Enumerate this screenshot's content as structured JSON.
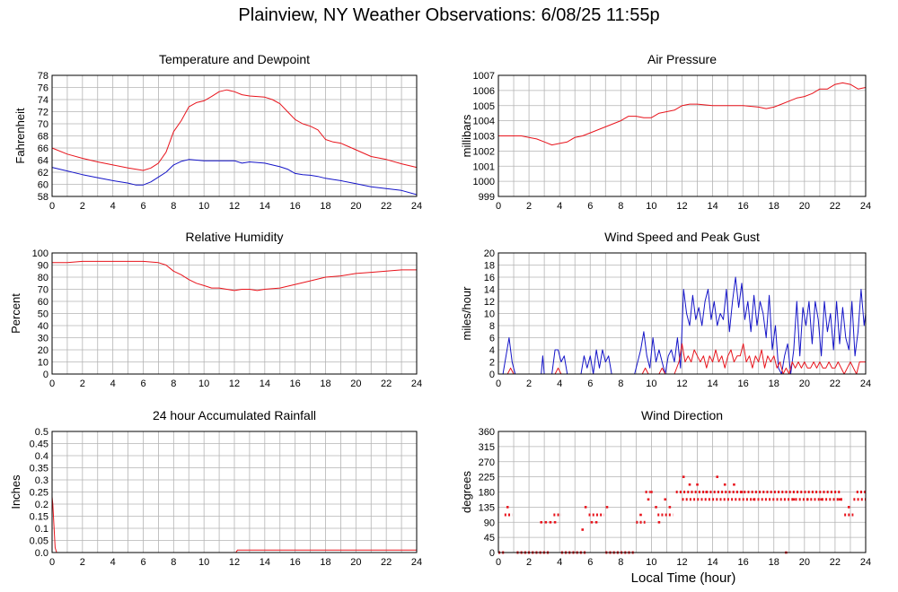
{
  "page_title": "Plainview, NY Weather Observations: 6/08/25 11:55p",
  "shared_xlabel": "Local Time (hour)",
  "colors": {
    "red": "#e8141c",
    "blue": "#1414c8",
    "grid": "#b4b4b4"
  },
  "chart_data": [
    {
      "id": "temp",
      "type": "line",
      "title": "Temperature and Dewpoint",
      "xlabel": "",
      "ylabel": "Fahrenheit",
      "xlim": [
        0,
        24
      ],
      "ylim": [
        58,
        78
      ],
      "xticks": [
        0,
        2,
        4,
        6,
        8,
        10,
        12,
        14,
        16,
        18,
        20,
        22,
        24
      ],
      "yticks": [
        58,
        60,
        62,
        64,
        66,
        68,
        70,
        72,
        74,
        76,
        78
      ],
      "grid": true,
      "series": [
        {
          "color": "#e8141c",
          "x": [
            0,
            1,
            2,
            3,
            4,
            5,
            6,
            6.5,
            7,
            7.5,
            8,
            8.5,
            9,
            9.5,
            10,
            10.5,
            11,
            11.5,
            12,
            12.5,
            13,
            13.5,
            14,
            14.5,
            15,
            15.5,
            16,
            16.5,
            17,
            17.5,
            18,
            18.5,
            19,
            20,
            21,
            22,
            23,
            24
          ],
          "y": [
            66,
            65,
            64.3,
            63.7,
            63.2,
            62.7,
            62.3,
            62.7,
            63.5,
            65.3,
            68.7,
            70.5,
            72.8,
            73.5,
            73.8,
            74.5,
            75.3,
            75.6,
            75.3,
            74.8,
            74.6,
            74.5,
            74.4,
            74.0,
            73.3,
            72.0,
            70.7,
            70.0,
            69.6,
            69.0,
            67.4,
            67.0,
            66.8,
            65.7,
            64.6,
            64.1,
            63.4,
            62.8
          ]
        },
        {
          "color": "#1414c8",
          "x": [
            0,
            1,
            2,
            3,
            4,
            5,
            5.5,
            6,
            6.5,
            7,
            7.5,
            8,
            8.5,
            9,
            9.5,
            10,
            11,
            12,
            12.5,
            13,
            14,
            15,
            15.5,
            16,
            16.5,
            17,
            17.5,
            18,
            18.5,
            19,
            20,
            21,
            22,
            23,
            24
          ],
          "y": [
            62.8,
            62.2,
            61.6,
            61.1,
            60.6,
            60.2,
            59.9,
            59.9,
            60.4,
            61.2,
            62.0,
            63.2,
            63.8,
            64.1,
            64.0,
            63.9,
            63.9,
            63.9,
            63.5,
            63.7,
            63.5,
            62.9,
            62.5,
            61.8,
            61.6,
            61.5,
            61.3,
            61.0,
            60.8,
            60.6,
            60.1,
            59.6,
            59.3,
            59.0,
            58.3
          ]
        }
      ]
    },
    {
      "id": "pressure",
      "type": "line",
      "title": "Air Pressure",
      "xlabel": "",
      "ylabel": "millibars",
      "xlim": [
        0,
        24
      ],
      "ylim": [
        999,
        1007
      ],
      "xticks": [
        0,
        2,
        4,
        6,
        8,
        10,
        12,
        14,
        16,
        18,
        20,
        22,
        24
      ],
      "yticks": [
        999,
        1000,
        1001,
        1002,
        1003,
        1004,
        1005,
        1006,
        1007
      ],
      "grid": true,
      "series": [
        {
          "color": "#e8141c",
          "x": [
            0,
            0.5,
            1,
            1.5,
            2,
            2.5,
            3,
            3.5,
            4,
            4.5,
            5,
            5.5,
            6,
            7,
            8,
            8.5,
            9,
            9.5,
            10,
            10.5,
            11,
            11.5,
            12,
            12.5,
            13,
            14,
            15,
            16,
            17,
            17.5,
            18,
            18.5,
            19,
            19.5,
            20,
            20.5,
            21,
            21.5,
            22,
            22.5,
            23,
            23.5,
            24
          ],
          "y": [
            1003.0,
            1003.0,
            1003.0,
            1003.0,
            1002.9,
            1002.8,
            1002.6,
            1002.4,
            1002.5,
            1002.6,
            1002.9,
            1003.0,
            1003.2,
            1003.6,
            1004.0,
            1004.3,
            1004.3,
            1004.2,
            1004.2,
            1004.5,
            1004.6,
            1004.7,
            1005.0,
            1005.1,
            1005.1,
            1005.0,
            1005.0,
            1005.0,
            1004.9,
            1004.8,
            1004.9,
            1005.1,
            1005.3,
            1005.5,
            1005.6,
            1005.8,
            1006.1,
            1006.1,
            1006.4,
            1006.5,
            1006.4,
            1006.1,
            1006.2
          ]
        }
      ]
    },
    {
      "id": "humidity",
      "type": "line",
      "title": "Relative Humidity",
      "xlabel": "",
      "ylabel": "Percent",
      "xlim": [
        0,
        24
      ],
      "ylim": [
        0,
        100
      ],
      "xticks": [
        0,
        2,
        4,
        6,
        8,
        10,
        12,
        14,
        16,
        18,
        20,
        22,
        24
      ],
      "yticks": [
        0,
        10,
        20,
        30,
        40,
        50,
        60,
        70,
        80,
        90,
        100
      ],
      "grid": true,
      "series": [
        {
          "color": "#e8141c",
          "x": [
            0,
            1,
            2,
            3,
            4,
            5,
            6,
            7,
            7.5,
            8,
            8.5,
            9,
            9.5,
            10,
            10.5,
            11,
            11.5,
            12,
            12.5,
            13,
            13.5,
            14,
            15,
            16,
            17,
            18,
            19,
            20,
            21,
            22,
            23,
            24
          ],
          "y": [
            92,
            92,
            93,
            93,
            93,
            93,
            93,
            92,
            90,
            85,
            82,
            78,
            75,
            73,
            71,
            71,
            70,
            69,
            70,
            70,
            69,
            70,
            71,
            74,
            77,
            80,
            81,
            83,
            84,
            85,
            86,
            86
          ]
        }
      ]
    },
    {
      "id": "wind",
      "type": "line",
      "title": "Wind Speed and Peak Gust",
      "xlabel": "",
      "ylabel": "miles/hour",
      "xlim": [
        0,
        24
      ],
      "ylim": [
        0,
        20
      ],
      "xticks": [
        0,
        2,
        4,
        6,
        8,
        10,
        12,
        14,
        16,
        18,
        20,
        22,
        24
      ],
      "yticks": [
        0,
        2,
        4,
        6,
        8,
        10,
        12,
        14,
        16,
        18,
        20
      ],
      "grid": true,
      "series": [
        {
          "color": "#1414c8",
          "x": [
            0,
            0.3,
            0.5,
            0.7,
            0.9,
            1.1,
            2.8,
            2.9,
            3.0,
            3.5,
            3.7,
            3.9,
            4.1,
            4.3,
            4.5,
            5.4,
            5.6,
            5.8,
            6.0,
            6.2,
            6.4,
            6.6,
            6.8,
            7.0,
            7.2,
            7.4,
            8.9,
            9.1,
            9.3,
            9.5,
            9.7,
            9.9,
            10.1,
            10.3,
            10.5,
            10.7,
            10.9,
            11.1,
            11.3,
            11.5,
            11.7,
            11.9,
            12.1,
            12.3,
            12.5,
            12.7,
            12.9,
            13.1,
            13.3,
            13.5,
            13.7,
            13.9,
            14.1,
            14.3,
            14.5,
            14.7,
            14.9,
            15.1,
            15.3,
            15.5,
            15.7,
            15.9,
            16.1,
            16.3,
            16.5,
            16.7,
            16.9,
            17.1,
            17.3,
            17.5,
            17.7,
            17.9,
            18.1,
            18.3,
            18.5,
            18.7,
            18.9,
            19.1,
            19.3,
            19.5,
            19.7,
            19.9,
            20.1,
            20.3,
            20.5,
            20.7,
            20.9,
            21.1,
            21.3,
            21.5,
            21.7,
            21.9,
            22.1,
            22.3,
            22.5,
            22.7,
            22.9,
            23.1,
            23.3,
            23.5,
            23.7,
            23.9,
            24.0
          ],
          "y": [
            0,
            0,
            3,
            6,
            2,
            0,
            0,
            3,
            0,
            0,
            4,
            4,
            2,
            3,
            0,
            0,
            3,
            1,
            3,
            0,
            4,
            1,
            4,
            2,
            3,
            0,
            0,
            2,
            4,
            7,
            3,
            1,
            6,
            2,
            4,
            2,
            0,
            3,
            4,
            2,
            6,
            1,
            14,
            10,
            8,
            13,
            9,
            11,
            8,
            12,
            14,
            9,
            12,
            8,
            10,
            9,
            14,
            7,
            12,
            16,
            11,
            15,
            9,
            12,
            7,
            13,
            8,
            12,
            10,
            6,
            13,
            4,
            8,
            1,
            0,
            3,
            5,
            0,
            4,
            12,
            3,
            11,
            8,
            12,
            5,
            12,
            9,
            3,
            12,
            7,
            10,
            4,
            12,
            5,
            11,
            6,
            4,
            12,
            3,
            7,
            14,
            8,
            10
          ]
        },
        {
          "color": "#e8141c",
          "x": [
            0,
            0.6,
            0.8,
            1.0,
            3.7,
            3.9,
            4.1,
            9.4,
            9.6,
            9.8,
            10.5,
            10.7,
            10.9,
            11.5,
            11.8,
            12.0,
            12.2,
            12.4,
            12.6,
            12.8,
            13.0,
            13.2,
            13.4,
            13.6,
            13.8,
            14.0,
            14.2,
            14.4,
            14.6,
            14.8,
            15.0,
            15.2,
            15.4,
            15.6,
            15.8,
            16.0,
            16.2,
            16.4,
            16.6,
            16.8,
            17.0,
            17.2,
            17.4,
            17.6,
            17.8,
            18.0,
            18.2,
            18.4,
            18.6,
            18.8,
            19.0,
            19.2,
            19.4,
            19.6,
            19.8,
            20.0,
            20.2,
            20.4,
            20.6,
            20.8,
            21.0,
            21.2,
            21.4,
            21.6,
            21.8,
            22.0,
            22.2,
            22.4,
            22.6,
            22.8,
            23.0,
            23.2,
            23.4,
            23.6,
            23.8,
            24.0
          ],
          "y": [
            0,
            0,
            1,
            0,
            0,
            1,
            0,
            0,
            1,
            0,
            0,
            1,
            0,
            0,
            2,
            5,
            2,
            3,
            2,
            4,
            3,
            2,
            3,
            1,
            3,
            2,
            4,
            2,
            3,
            1,
            3,
            4,
            2,
            3,
            3,
            5,
            2,
            3,
            1,
            3,
            2,
            4,
            1,
            3,
            2,
            3,
            1,
            2,
            0,
            1,
            0,
            2,
            1,
            2,
            1,
            2,
            1,
            1,
            2,
            1,
            2,
            1,
            1,
            2,
            1,
            1,
            2,
            1,
            0,
            1,
            2,
            1,
            0,
            2,
            2,
            2
          ]
        }
      ]
    },
    {
      "id": "rain",
      "type": "line",
      "title": "24 hour Accumulated Rainfall",
      "xlabel": "",
      "ylabel": "Inches",
      "xlim": [
        0,
        24
      ],
      "ylim": [
        0,
        0.5
      ],
      "xticks": [
        0,
        2,
        4,
        6,
        8,
        10,
        12,
        14,
        16,
        18,
        20,
        22,
        24
      ],
      "yticks": [
        0.0,
        0.05,
        0.1,
        0.15,
        0.2,
        0.25,
        0.3,
        0.35,
        0.4,
        0.45,
        0.5
      ],
      "ytick_labels": [
        "0.0",
        "0.05",
        "0.1",
        "0.15",
        "0.2",
        "0.25",
        "0.3",
        "0.35",
        "0.4",
        "0.45",
        "0.5"
      ],
      "grid": true,
      "series": [
        {
          "color": "#e8141c",
          "x": [
            0,
            0.05,
            0.2,
            0.3,
            12.1,
            12.2,
            24
          ],
          "y": [
            0.23,
            0.2,
            0.02,
            0.0,
            0.0,
            0.01,
            0.01
          ]
        }
      ]
    },
    {
      "id": "direction",
      "type": "scatter",
      "title": "Wind Direction",
      "xlabel": "Local Time (hour)",
      "ylabel": "degrees",
      "xlim": [
        0,
        24
      ],
      "ylim": [
        0,
        360
      ],
      "xticks": [
        0,
        2,
        4,
        6,
        8,
        10,
        12,
        14,
        16,
        18,
        20,
        22,
        24
      ],
      "yticks": [
        0,
        45,
        90,
        135,
        180,
        225,
        270,
        315,
        360
      ],
      "grid": true,
      "series": [
        {
          "color": "#e8141c",
          "segments": [
            {
              "x0": 0.0,
              "x1": 0.4,
              "y": 0
            },
            {
              "x0": 0.4,
              "x1": 0.9,
              "y": 112
            },
            {
              "x0": 1.2,
              "x1": 3.4,
              "y": 0
            },
            {
              "x0": 3.6,
              "x1": 4.1,
              "y": 112
            },
            {
              "x0": 4.1,
              "x1": 5.8,
              "y": 0
            },
            {
              "x0": 5.9,
              "x1": 6.9,
              "y": 112
            },
            {
              "x0": 7.0,
              "x1": 8.9,
              "y": 0
            },
            {
              "x0": 9.0,
              "x1": 9.6,
              "y": 90
            },
            {
              "x0": 9.6,
              "x1": 9.9,
              "y": 180
            },
            {
              "x0": 10.4,
              "x1": 11.4,
              "y": 112
            },
            {
              "x0": 11.6,
              "x1": 22.4,
              "y": 180
            },
            {
              "x0": 12.0,
              "x1": 22.6,
              "y": 158
            },
            {
              "x0": 22.6,
              "x1": 23.2,
              "y": 112
            },
            {
              "x0": 23.2,
              "x1": 24.0,
              "y": 158
            },
            {
              "x0": 23.4,
              "x1": 24.0,
              "y": 180
            }
          ],
          "x": [
            0.6,
            2.8,
            3.1,
            3.4,
            3.7,
            5.5,
            5.7,
            6.1,
            6.4,
            7.1,
            9.3,
            9.8,
            10.0,
            10.3,
            10.5,
            10.9,
            11.2,
            12.1,
            12.5,
            13.0,
            13.6,
            14.3,
            14.8,
            15.4,
            15.9,
            16.7,
            18.8,
            19.3,
            20.2,
            21.1,
            22.3,
            22.9
          ],
          "y": [
            135,
            90,
            90,
            90,
            90,
            68,
            135,
            90,
            90,
            135,
            112,
            158,
            180,
            135,
            90,
            158,
            135,
            225,
            202,
            202,
            180,
            225,
            202,
            202,
            180,
            158,
            0,
            158,
            158,
            158,
            158,
            135
          ]
        }
      ]
    }
  ]
}
